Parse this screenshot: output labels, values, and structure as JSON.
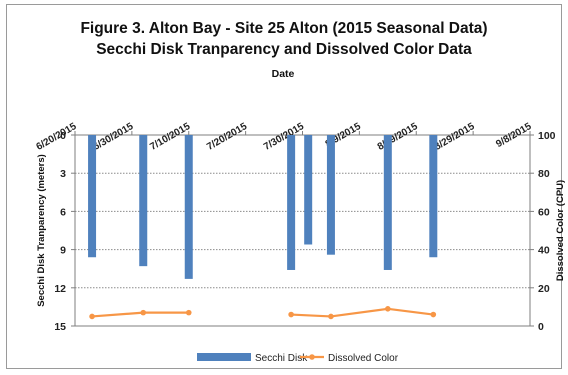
{
  "chart_data": {
    "type": "bar",
    "title_line1": "Figure 3. Alton Bay - Site 25 Alton (2015 Seasonal Data)",
    "title_line2": "Secchi Disk Tranparency and Dissolved Color Data",
    "xlabel": "Date",
    "x_ticks": [
      "6/20/2015",
      "6/30/2015",
      "7/10/2015",
      "7/20/2015",
      "7/30/2015",
      "8/9/2015",
      "8/19/2015",
      "8/29/2015",
      "9/8/2015"
    ],
    "x_range": [
      "2015-06-20",
      "2015-09-08"
    ],
    "ylabel_left": "Secchi Disk Tranparency (meters)",
    "ylim_left": [
      0,
      15
    ],
    "yticks_left": [
      0,
      3,
      6,
      9,
      12,
      15
    ],
    "left_axis_inverted": true,
    "ylabel_right": "Dissolved Color (CPU)",
    "ylim_right": [
      0,
      100
    ],
    "yticks_right": [
      0,
      20,
      40,
      60,
      80,
      100
    ],
    "grid": true,
    "legend_position": "bottom",
    "series": [
      {
        "name": "Secchi Disk",
        "kind": "bar",
        "axis": "left",
        "color": "#4f81bd",
        "points": [
          {
            "date": "2015-06-23",
            "value": 9.6
          },
          {
            "date": "2015-07-02",
            "value": 10.3
          },
          {
            "date": "2015-07-10",
            "value": 11.3
          },
          {
            "date": "2015-07-28",
            "value": 10.6
          },
          {
            "date": "2015-07-31",
            "value": 8.6
          },
          {
            "date": "2015-08-04",
            "value": 9.4
          },
          {
            "date": "2015-08-14",
            "value": 10.6
          },
          {
            "date": "2015-08-22",
            "value": 9.6
          }
        ]
      },
      {
        "name": "Dissolved Color",
        "kind": "line",
        "axis": "right",
        "color": "#f79646",
        "points": [
          {
            "date": "2015-06-23",
            "value": 5
          },
          {
            "date": "2015-07-02",
            "value": 7
          },
          {
            "date": "2015-07-10",
            "value": 7
          },
          {
            "date": "2015-07-28",
            "value": 6
          },
          {
            "date": "2015-08-04",
            "value": 5
          },
          {
            "date": "2015-08-14",
            "value": 9
          },
          {
            "date": "2015-08-22",
            "value": 6
          }
        ]
      }
    ]
  }
}
